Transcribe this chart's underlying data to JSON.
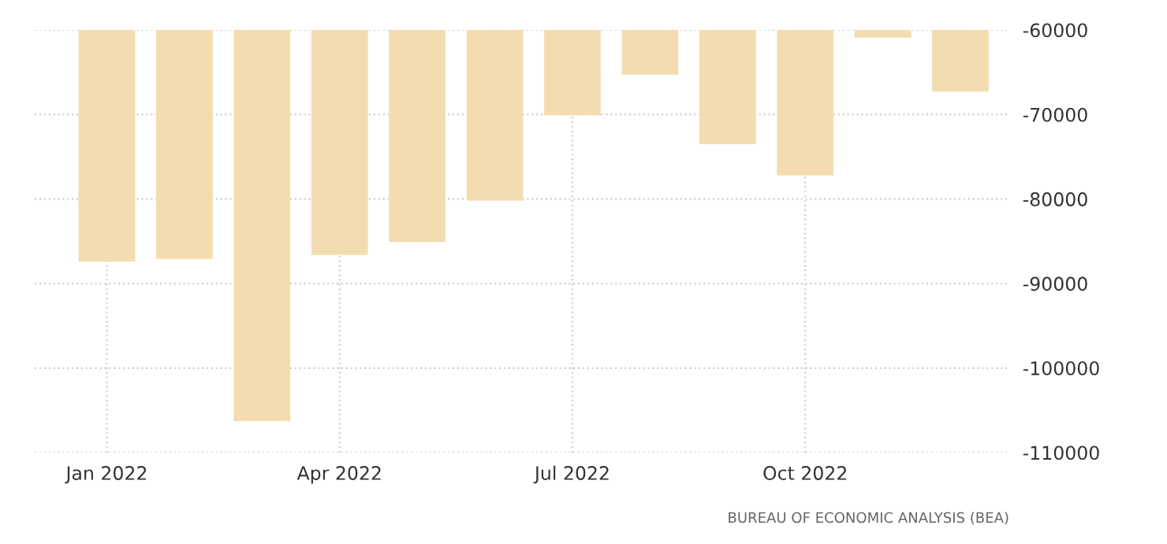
{
  "chart_data": {
    "type": "bar",
    "categories": [
      "Jan 2022",
      null,
      null,
      "Apr 2022",
      null,
      null,
      "Jul 2022",
      null,
      null,
      "Oct 2022",
      null,
      null
    ],
    "values": [
      -87400,
      -87100,
      -106300,
      -86600,
      -85100,
      -80200,
      -70100,
      -65300,
      -73500,
      -77200,
      -60900,
      -67300
    ],
    "color": "#f3ddb0",
    "ylim": [
      -110000,
      -60000
    ],
    "yticks": [
      -110000,
      -100000,
      -90000,
      -80000,
      -70000,
      -60000
    ],
    "grid": true,
    "annotations": [
      "BUREAU OF ECONOMIC ANALYSIS (BEA)"
    ]
  }
}
